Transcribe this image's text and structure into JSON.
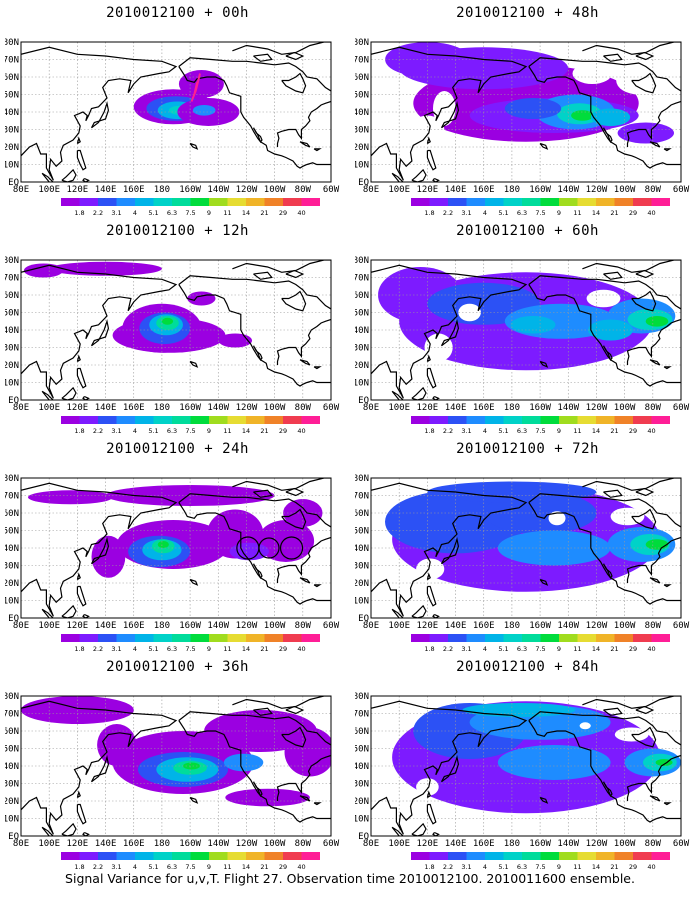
{
  "panels": [
    {
      "title": "2010012100 + 00h",
      "step": 0
    },
    {
      "title": "2010012100 + 48h",
      "step": 4
    },
    {
      "title": "2010012100 + 12h",
      "step": 1
    },
    {
      "title": "2010012100 + 60h",
      "step": 5
    },
    {
      "title": "2010012100 + 24h",
      "step": 2
    },
    {
      "title": "2010012100 + 72h",
      "step": 6
    },
    {
      "title": "2010012100 + 36h",
      "step": 3
    },
    {
      "title": "2010012100 + 84h",
      "step": 7
    }
  ],
  "lat_labels": [
    "80N",
    "70N",
    "60N",
    "50N",
    "40N",
    "30N",
    "20N",
    "10N",
    "EQ"
  ],
  "lon_labels": [
    "80E",
    "100E",
    "120E",
    "140E",
    "160E",
    "180",
    "160W",
    "140W",
    "120W",
    "100W",
    "80W",
    "60W"
  ],
  "colorbar": {
    "labels": [
      "1.8",
      "2.2",
      "3.1",
      "4",
      "5.1",
      "6.3",
      "7.5",
      "9",
      "11",
      "14",
      "21",
      "29",
      "40"
    ],
    "colors": [
      "#9b00e1",
      "#7d1bff",
      "#2c51f5",
      "#1e8cff",
      "#00b4e8",
      "#00d2c8",
      "#00dc9b",
      "#00dc3c",
      "#a0dc1e",
      "#e6dc32",
      "#f0b428",
      "#f08228",
      "#f03c50",
      "#ff1e96"
    ]
  },
  "caption": "Signal Variance for u,v,T. Flight 27. Observation time 2010012100. 2010011600 ensemble."
}
